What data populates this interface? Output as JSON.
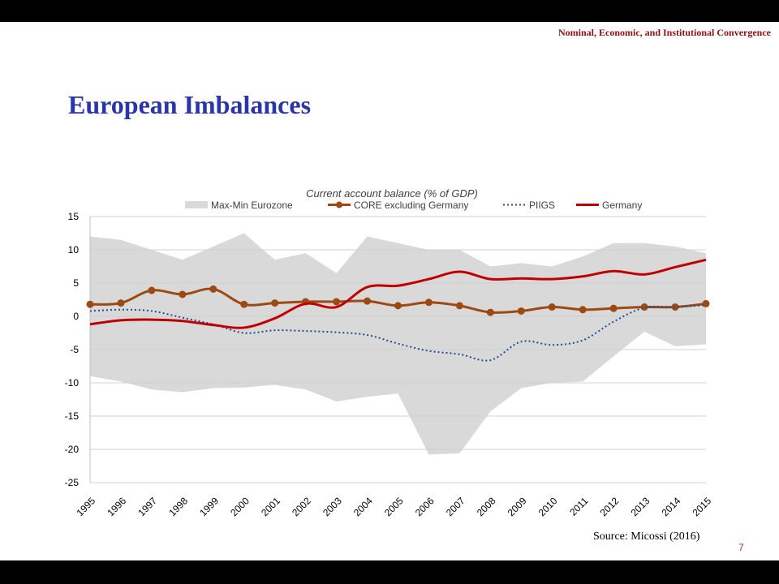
{
  "slide": {
    "header": "Nominal, Economic, and Institutional Convergence",
    "title": "European Imbalances",
    "source": "Source: Micossi (2016)",
    "page_number": "7"
  },
  "colors": {
    "band": "#d9d9d9",
    "core": "#9c4a12",
    "piigs": "#1f4e8c",
    "germany": "#c00000",
    "title": "#2a36a8",
    "header": "#8b1010"
  },
  "chart_data": {
    "type": "line",
    "title": "Current account balance (% of GDP)",
    "x": [
      "1995",
      "1996",
      "1997",
      "1998",
      "1999",
      "2000",
      "2001",
      "2002",
      "2003",
      "2004",
      "2005",
      "2006",
      "2007",
      "2008",
      "2009",
      "2010",
      "2011",
      "2012",
      "2013",
      "2014",
      "2015"
    ],
    "ylim": [
      -25,
      15
    ],
    "yticks": [
      15,
      10,
      5,
      0,
      -5,
      -10,
      -15,
      -20,
      -25
    ],
    "legend_position": "top",
    "grid": true,
    "band": {
      "name": "Max-Min Eurozone",
      "max": [
        12,
        11.5,
        10,
        8.5,
        10.5,
        12.5,
        8.5,
        9.5,
        6.5,
        12,
        11,
        10,
        10,
        7.5,
        8,
        7.5,
        9,
        11,
        11,
        10.5,
        9.5
      ],
      "min": [
        -9,
        -9.8,
        -11,
        -11.4,
        -10.8,
        -10.7,
        -10.3,
        -11,
        -12.8,
        -12.1,
        -11.6,
        -20.8,
        -20.6,
        -14.3,
        -10.8,
        -10,
        -9.8,
        -6,
        -2.3,
        -4.5,
        -4.2
      ]
    },
    "series": [
      {
        "name": "CORE excluding Germany",
        "style": "line-markers",
        "values": [
          1.8,
          2.0,
          3.9,
          3.3,
          4.1,
          1.8,
          2.0,
          2.2,
          2.2,
          2.3,
          1.6,
          2.1,
          1.6,
          0.6,
          0.8,
          1.4,
          1.0,
          1.2,
          1.4,
          1.4,
          1.9
        ]
      },
      {
        "name": "PIIGS",
        "style": "dotted",
        "values": [
          0.8,
          1.0,
          0.8,
          -0.2,
          -1.2,
          -2.5,
          -2.1,
          -2.2,
          -2.4,
          -2.8,
          -4.1,
          -5.2,
          -5.7,
          -6.6,
          -3.8,
          -4.3,
          -3.6,
          -0.8,
          1.3,
          1.4,
          1.7
        ]
      },
      {
        "name": "Germany",
        "style": "solid",
        "values": [
          -1.2,
          -0.6,
          -0.5,
          -0.7,
          -1.3,
          -1.7,
          -0.3,
          1.9,
          1.4,
          4.4,
          4.6,
          5.6,
          6.7,
          5.6,
          5.7,
          5.6,
          6.0,
          6.8,
          6.3,
          7.4,
          8.5
        ]
      }
    ]
  }
}
